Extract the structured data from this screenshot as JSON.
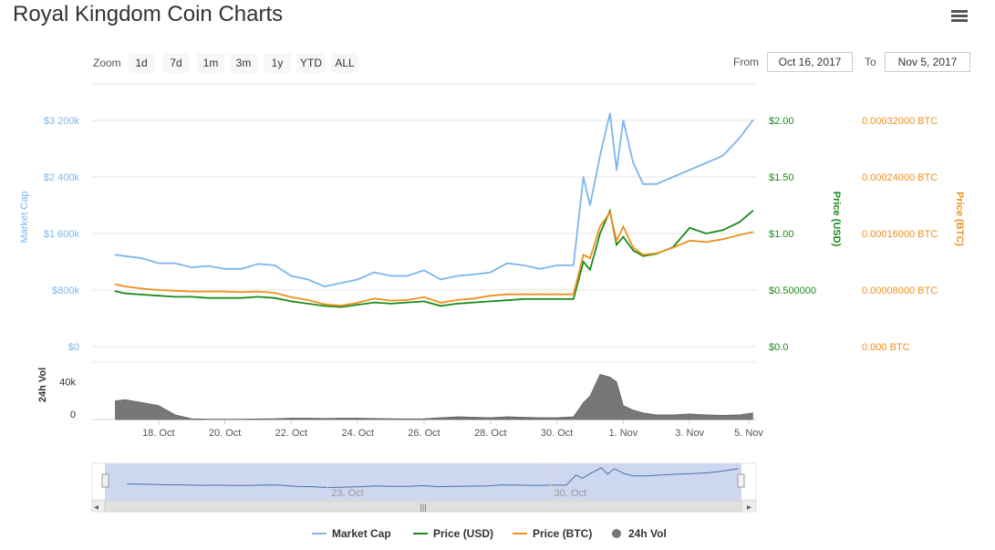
{
  "title": "Royal Kingdom Coin Charts",
  "toolbar": {
    "zoom_label": "Zoom",
    "zoom_buttons": [
      "1d",
      "7d",
      "1m",
      "3m",
      "1y",
      "YTD",
      "ALL"
    ],
    "from_label": "From",
    "from_value": "Oct 16, 2017",
    "to_label": "To",
    "to_value": "Nov 5, 2017"
  },
  "colors": {
    "market_cap": "#7cb5ec",
    "price_usd": "#1a8a1a",
    "price_btc": "#f0901d",
    "volume": "#777777",
    "navigator_fill": "#c9d3ee"
  },
  "chart_data": {
    "type": "line",
    "x_range": [
      "Oct 16, 2017",
      "Nov 5, 2017"
    ],
    "x_ticks": [
      "18. Oct",
      "20. Oct",
      "22. Oct",
      "24. Oct",
      "26. Oct",
      "28. Oct",
      "30. Oct",
      "1. Nov",
      "3. Nov",
      "5. Nov"
    ],
    "axes": {
      "market_cap": {
        "label": "Market Cap",
        "ticks": [
          "$0",
          "$800k",
          "$1 600k",
          "$2 400k",
          "$3 200k"
        ],
        "range": [
          0,
          3200000
        ]
      },
      "price_usd": {
        "label": "Price (USD)",
        "ticks": [
          "$0.0",
          "$0.500000",
          "$1.00",
          "$1.50",
          "$2.00"
        ],
        "range": [
          0,
          2.0
        ]
      },
      "price_btc": {
        "label": "Price (BTC)",
        "ticks": [
          "0.000 BTC",
          "0.00008000 BTC",
          "0.00016000 BTC",
          "0.00024000 BTC",
          "0.00032000 BTC"
        ],
        "range": [
          0,
          0.00032
        ]
      },
      "volume": {
        "label": "24h Vol",
        "ticks": [
          "0",
          "40k"
        ],
        "range": [
          0,
          55000
        ]
      }
    },
    "x": [
      16.7,
      17.0,
      17.5,
      18.0,
      18.5,
      19.0,
      19.5,
      20.0,
      20.5,
      21.0,
      21.5,
      22.0,
      22.5,
      23.0,
      23.5,
      24.0,
      24.5,
      25.0,
      25.5,
      26.0,
      26.5,
      27.0,
      27.5,
      28.0,
      28.5,
      29.0,
      29.5,
      30.0,
      30.5,
      30.8,
      31.0,
      31.3,
      31.6,
      31.8,
      32.0,
      32.3,
      32.6,
      33.0,
      33.5,
      34.0,
      34.5,
      35.0,
      35.5,
      35.9
    ],
    "series": [
      {
        "name": "Market Cap",
        "axis": "market_cap",
        "values": [
          1300000,
          1280000,
          1250000,
          1180000,
          1180000,
          1120000,
          1140000,
          1100000,
          1100000,
          1170000,
          1150000,
          1000000,
          950000,
          850000,
          900000,
          950000,
          1050000,
          1000000,
          1000000,
          1080000,
          950000,
          1000000,
          1020000,
          1050000,
          1180000,
          1150000,
          1100000,
          1150000,
          1150000,
          2400000,
          2000000,
          2700000,
          3300000,
          2500000,
          3200000,
          2600000,
          2300000,
          2300000,
          2400000,
          2500000,
          2600000,
          2700000,
          2950000,
          3200000
        ]
      },
      {
        "name": "Price (USD)",
        "axis": "price_usd",
        "values": [
          0.49,
          0.47,
          0.46,
          0.45,
          0.44,
          0.44,
          0.43,
          0.43,
          0.43,
          0.44,
          0.43,
          0.4,
          0.38,
          0.36,
          0.35,
          0.37,
          0.39,
          0.38,
          0.39,
          0.4,
          0.36,
          0.38,
          0.39,
          0.4,
          0.41,
          0.42,
          0.42,
          0.42,
          0.42,
          0.75,
          0.68,
          1.0,
          1.2,
          0.9,
          0.97,
          0.85,
          0.8,
          0.82,
          0.88,
          1.05,
          1.0,
          1.03,
          1.1,
          1.2
        ]
      },
      {
        "name": "Price (BTC)",
        "axis": "price_btc",
        "values": [
          8.8e-05,
          8.5e-05,
          8.2e-05,
          8e-05,
          7.9e-05,
          7.8e-05,
          7.8e-05,
          7.8e-05,
          7.7e-05,
          7.8e-05,
          7.6e-05,
          7e-05,
          6.6e-05,
          6e-05,
          5.8e-05,
          6.2e-05,
          6.8e-05,
          6.5e-05,
          6.6e-05,
          7e-05,
          6.2e-05,
          6.6e-05,
          6.8e-05,
          7.2e-05,
          7.4e-05,
          7.4e-05,
          7.4e-05,
          7.4e-05,
          7.4e-05,
          0.00013,
          0.000125,
          0.00017,
          0.00019,
          0.00015,
          0.00017,
          0.00014,
          0.00013,
          0.000132,
          0.00014,
          0.00015,
          0.000148,
          0.000152,
          0.000158,
          0.000162
        ]
      },
      {
        "name": "24h Vol",
        "axis": "volume",
        "type": "area",
        "values": [
          20000,
          21000,
          18000,
          15000,
          5000,
          1000,
          500,
          500,
          500,
          800,
          1000,
          1500,
          1500,
          1200,
          1500,
          1500,
          1200,
          1000,
          800,
          1000,
          2000,
          3000,
          2500,
          2000,
          3000,
          2500,
          2000,
          2000,
          3000,
          18000,
          25000,
          48000,
          45000,
          40000,
          15000,
          10000,
          7000,
          5000,
          5000,
          6000,
          5000,
          4500,
          5000,
          7000
        ]
      }
    ],
    "navigator_ticks": [
      "23. Oct",
      "30. Oct"
    ],
    "legend_placement": "bottom-center",
    "legend": [
      "Market Cap",
      "Price (USD)",
      "Price (BTC)",
      "24h Vol"
    ]
  }
}
